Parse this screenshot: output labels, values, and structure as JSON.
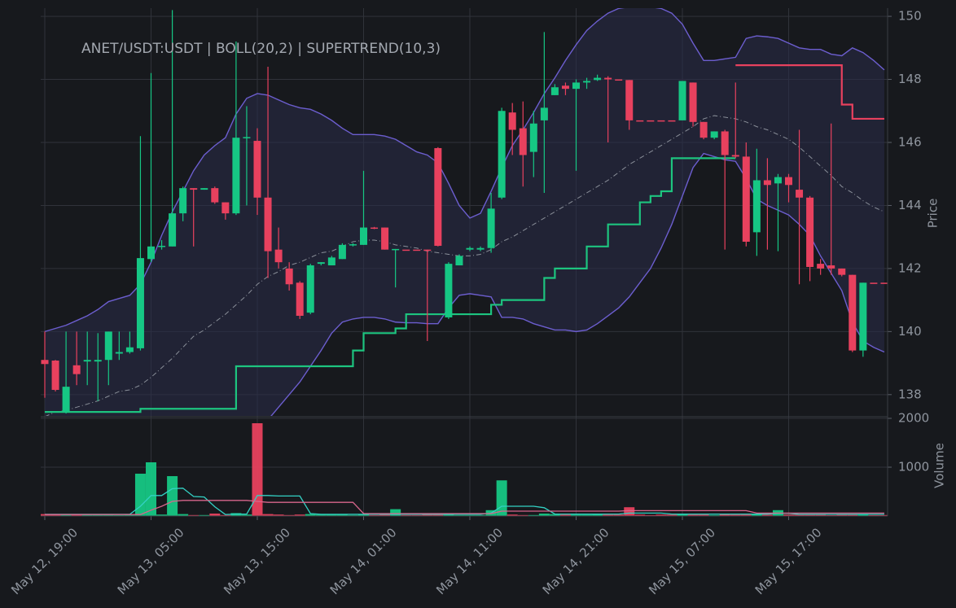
{
  "chart_data": [
    {
      "type": "candlestick",
      "title": "ANET/USDT:USDT | BOLL(20,2) | SUPERTREND(10,3)",
      "ylabel": "Price",
      "ylim": [
        137.35,
        150.26
      ],
      "yticks": [
        138,
        140,
        142,
        144,
        146,
        148,
        150
      ],
      "grid": true,
      "up_color": "#16c784",
      "down_color": "#e8415e",
      "open": [
        139.1,
        139.08,
        137.45,
        138.93,
        139.05,
        139.05,
        139.1,
        139.3,
        139.35,
        139.47,
        142.3,
        142.7,
        142.7,
        143.75,
        144.55,
        144.5,
        144.55,
        144.1,
        143.75,
        146.15,
        146.05,
        144.25,
        142.6,
        142.0,
        141.55,
        140.6,
        142.15,
        142.1,
        142.3,
        142.75,
        142.75,
        143.3,
        143.3,
        142.6,
        142.6,
        142.6,
        142.6,
        145.82,
        140.45,
        142.1,
        142.6,
        142.6,
        142.65,
        144.25,
        146.95,
        146.45,
        145.7,
        146.7,
        147.5,
        147.8,
        147.7,
        147.9,
        147.98,
        148.05,
        148.0,
        147.98,
        146.7,
        146.7,
        146.7,
        146.7,
        146.7,
        147.9,
        146.65,
        146.15,
        146.35,
        145.6,
        145.55,
        143.15,
        144.8,
        144.7,
        144.9,
        144.5,
        144.25,
        142.15,
        142.1,
        142.0,
        141.8,
        139.4,
        141.55,
        141.55
      ],
      "high": [
        140.0,
        139.1,
        140.0,
        140.0,
        140.0,
        139.95,
        140.0,
        140.0,
        140.0,
        146.2,
        148.2,
        142.9,
        150.2,
        144.6,
        144.55,
        144.55,
        144.6,
        144.1,
        149.2,
        147.15,
        146.45,
        148.4,
        143.3,
        142.2,
        141.6,
        142.15,
        142.2,
        142.4,
        142.8,
        142.8,
        145.1,
        143.32,
        143.3,
        142.62,
        142.6,
        142.6,
        142.6,
        145.85,
        142.2,
        142.45,
        142.7,
        142.7,
        144.4,
        147.1,
        147.25,
        147.3,
        147.0,
        149.5,
        147.85,
        147.9,
        148.0,
        148.05,
        148.15,
        148.1,
        148.0,
        147.98,
        146.7,
        146.7,
        146.7,
        146.7,
        147.95,
        147.9,
        146.65,
        146.35,
        146.4,
        147.9,
        146.0,
        145.8,
        145.5,
        145.0,
        145.0,
        146.4,
        144.3,
        142.3,
        146.6,
        142.0,
        141.8,
        141.55,
        141.55,
        141.55
      ],
      "low": [
        137.9,
        138.1,
        137.4,
        138.3,
        138.3,
        137.8,
        138.3,
        139.1,
        139.3,
        139.4,
        142.2,
        142.6,
        142.7,
        143.5,
        142.7,
        144.5,
        144.05,
        143.55,
        143.7,
        144.0,
        143.7,
        141.7,
        142.0,
        141.3,
        140.4,
        140.55,
        142.1,
        142.1,
        142.3,
        142.7,
        142.75,
        143.25,
        142.6,
        141.4,
        142.6,
        142.6,
        139.7,
        142.7,
        140.4,
        142.1,
        142.55,
        142.55,
        142.5,
        144.2,
        145.6,
        144.6,
        144.9,
        144.4,
        147.5,
        147.5,
        145.1,
        147.7,
        147.95,
        146.0,
        148.0,
        146.4,
        146.7,
        146.7,
        146.7,
        146.7,
        146.7,
        146.5,
        146.1,
        146.1,
        142.6,
        145.5,
        142.7,
        142.4,
        142.6,
        142.55,
        144.1,
        141.5,
        141.6,
        141.8,
        141.8,
        141.75,
        139.35,
        139.2,
        141.55,
        141.55
      ],
      "close": [
        138.97,
        138.15,
        138.25,
        138.65,
        139.1,
        139.1,
        140.0,
        139.35,
        139.5,
        142.33,
        142.7,
        142.72,
        143.75,
        144.55,
        144.5,
        144.55,
        144.1,
        143.75,
        146.15,
        146.17,
        144.25,
        142.55,
        142.2,
        141.5,
        140.5,
        142.1,
        142.2,
        142.35,
        142.75,
        142.77,
        143.3,
        143.28,
        142.6,
        142.62,
        142.6,
        142.6,
        142.6,
        142.72,
        142.15,
        142.4,
        142.65,
        142.65,
        143.9,
        147.0,
        146.4,
        145.6,
        146.6,
        147.1,
        147.75,
        147.7,
        147.9,
        147.95,
        148.05,
        148.0,
        148.0,
        146.7,
        146.7,
        146.7,
        146.7,
        146.7,
        147.95,
        146.65,
        146.15,
        146.35,
        145.6,
        145.55,
        142.85,
        144.8,
        144.65,
        144.9,
        144.65,
        144.25,
        142.05,
        142.0,
        142.0,
        141.8,
        139.4,
        141.55,
        141.55,
        141.55
      ],
      "bollinger": {
        "color": "#6c5ecf",
        "mid_color": "#8a8f99",
        "fill": "#2a2c48",
        "upper": [
          140.0,
          140.1,
          140.2,
          140.35,
          140.5,
          140.7,
          140.95,
          141.05,
          141.15,
          141.5,
          142.2,
          143.05,
          143.8,
          144.45,
          145.1,
          145.6,
          145.9,
          146.15,
          146.9,
          147.4,
          147.55,
          147.5,
          147.35,
          147.2,
          147.1,
          147.05,
          146.9,
          146.7,
          146.45,
          146.25,
          146.25,
          146.25,
          146.2,
          146.1,
          145.9,
          145.7,
          145.6,
          145.35,
          144.7,
          144.0,
          143.6,
          143.75,
          144.45,
          145.2,
          145.9,
          146.4,
          146.95,
          147.55,
          148.05,
          148.6,
          149.1,
          149.55,
          149.85,
          150.1,
          150.25,
          150.3,
          150.3,
          150.3,
          150.25,
          150.1,
          149.75,
          149.15,
          148.6,
          148.6,
          148.65,
          148.7,
          149.3,
          149.38,
          149.35,
          149.3,
          149.15,
          149.0,
          148.95,
          148.95,
          148.8,
          148.75,
          149.0,
          148.85,
          148.6,
          148.3
        ],
        "middle": [
          137.3,
          137.45,
          137.5,
          137.6,
          137.7,
          137.8,
          137.95,
          138.1,
          138.15,
          138.3,
          138.55,
          138.85,
          139.15,
          139.5,
          139.85,
          140.05,
          140.3,
          140.55,
          140.85,
          141.15,
          141.5,
          141.75,
          141.9,
          142.1,
          142.2,
          142.35,
          142.5,
          142.55,
          142.7,
          142.85,
          142.9,
          142.9,
          142.85,
          142.75,
          142.7,
          142.65,
          142.55,
          142.5,
          142.45,
          142.4,
          142.4,
          142.45,
          142.6,
          142.85,
          143.0,
          143.2,
          143.4,
          143.6,
          143.8,
          144.0,
          144.2,
          144.4,
          144.6,
          144.8,
          145.05,
          145.3,
          145.5,
          145.7,
          145.9,
          146.1,
          146.3,
          146.5,
          146.75,
          146.85,
          146.8,
          146.75,
          146.65,
          146.5,
          146.4,
          146.25,
          146.1,
          145.85,
          145.55,
          145.25,
          144.95,
          144.6,
          144.4,
          144.15,
          143.95,
          143.8
        ],
        "lower": [
          134.6,
          134.8,
          134.8,
          134.85,
          134.9,
          134.9,
          134.95,
          135.15,
          135.15,
          135.1,
          134.9,
          134.65,
          134.5,
          134.55,
          134.6,
          134.5,
          134.7,
          134.95,
          135.5,
          136.0,
          136.6,
          137.2,
          137.6,
          138.0,
          138.4,
          138.9,
          139.4,
          139.95,
          140.3,
          140.4,
          140.45,
          140.45,
          140.4,
          140.3,
          140.28,
          140.28,
          140.25,
          140.25,
          140.75,
          141.15,
          141.2,
          141.15,
          141.1,
          140.45,
          140.45,
          140.4,
          140.25,
          140.15,
          140.05,
          140.05,
          140.0,
          140.05,
          140.25,
          140.5,
          140.75,
          141.1,
          141.55,
          142.0,
          142.65,
          143.4,
          144.3,
          145.2,
          145.65,
          145.55,
          145.45,
          145.4,
          144.85,
          144.2,
          144.0,
          143.85,
          143.7,
          143.4,
          143.05,
          142.4,
          141.85,
          141.3,
          140.3,
          139.7,
          139.5,
          139.35
        ]
      },
      "supertrend": [
        {
          "color": "#1dc47f",
          "values": [
            137.45,
            137.45,
            137.45,
            137.45,
            137.45,
            137.45,
            137.45,
            137.45,
            137.45,
            137.55,
            137.55,
            137.55,
            137.55,
            137.55,
            137.55,
            137.55,
            137.55,
            137.55,
            138.9,
            138.9,
            138.9,
            138.9,
            138.9,
            138.9,
            138.9,
            138.9,
            138.9,
            138.9,
            138.9,
            139.4,
            139.95,
            139.95,
            139.95,
            140.1,
            140.55,
            140.55,
            140.55,
            140.55,
            140.55,
            140.55,
            140.55,
            140.55,
            140.85,
            141.0,
            141.0,
            141.0,
            141.0,
            141.7,
            142.0,
            142.0,
            142.0,
            142.7,
            142.7,
            143.4,
            143.4,
            143.4,
            144.1,
            144.3,
            144.45,
            145.5,
            145.5,
            145.5,
            145.5,
            145.5,
            145.5,
            145.5,
            null,
            null,
            null,
            null,
            null,
            null,
            null,
            null,
            null,
            null,
            null,
            null,
            null,
            null
          ]
        },
        {
          "color": "#e8415e",
          "values": [
            null,
            null,
            null,
            null,
            null,
            null,
            null,
            null,
            null,
            null,
            null,
            null,
            null,
            null,
            null,
            null,
            null,
            null,
            null,
            null,
            null,
            null,
            null,
            null,
            null,
            null,
            null,
            null,
            null,
            null,
            null,
            null,
            null,
            null,
            null,
            null,
            null,
            null,
            null,
            null,
            null,
            null,
            null,
            null,
            null,
            null,
            null,
            null,
            null,
            null,
            null,
            null,
            null,
            null,
            null,
            null,
            null,
            null,
            null,
            null,
            null,
            null,
            null,
            null,
            null,
            148.45,
            148.45,
            148.45,
            148.45,
            148.45,
            148.45,
            148.45,
            148.45,
            148.45,
            148.45,
            147.2,
            146.75,
            146.75,
            146.75,
            146.75
          ]
        }
      ]
    },
    {
      "type": "bar",
      "ylabel": "Volume",
      "ylim": [
        0,
        2000
      ],
      "yticks": [
        1000,
        2000
      ],
      "grid": true,
      "categories": [
        "May 12, 19:00",
        null,
        null,
        null,
        null,
        null,
        null,
        null,
        null,
        null,
        "May 13, 05:00",
        null,
        null,
        null,
        null,
        null,
        null,
        null,
        null,
        null,
        "May 13, 15:00",
        null,
        null,
        null,
        null,
        null,
        null,
        null,
        null,
        null,
        "May 14, 01:00",
        null,
        null,
        null,
        null,
        null,
        null,
        null,
        null,
        null,
        "May 14, 11:00",
        null,
        null,
        null,
        null,
        null,
        null,
        null,
        null,
        null,
        "May 14, 21:00",
        null,
        null,
        null,
        null,
        null,
        null,
        null,
        null,
        null,
        "May 15, 07:00",
        null,
        null,
        null,
        null,
        null,
        null,
        null,
        null,
        null,
        "May 15, 17:00",
        null,
        null,
        null,
        null,
        null,
        null,
        null,
        null,
        null
      ],
      "values": [
        40,
        30,
        30,
        40,
        30,
        25,
        30,
        20,
        30,
        867,
        1100,
        30,
        817,
        40,
        20,
        20,
        50,
        20,
        60,
        30,
        1900,
        40,
        30,
        20,
        30,
        40,
        30,
        30,
        30,
        20,
        30,
        20,
        30,
        140,
        20,
        20,
        30,
        30,
        30,
        20,
        20,
        20,
        120,
        730,
        30,
        20,
        20,
        50,
        40,
        30,
        30,
        30,
        40,
        30,
        30,
        180,
        30,
        20,
        30,
        30,
        40,
        30,
        30,
        20,
        40,
        30,
        30,
        40,
        30,
        120,
        30,
        30,
        30,
        30,
        20,
        30,
        40,
        30,
        20,
        20
      ],
      "ma": [
        {
          "color": "#33d1c4",
          "values": [
            35,
            35,
            35,
            35,
            35,
            35,
            35,
            35,
            35,
            200,
            420,
            420,
            560,
            570,
            400,
            390,
            190,
            30,
            40,
            40,
            420,
            420,
            410,
            410,
            410,
            50,
            35,
            35,
            35,
            35,
            35,
            35,
            35,
            35,
            35,
            35,
            35,
            35,
            35,
            35,
            35,
            35,
            60,
            200,
            200,
            200,
            200,
            170,
            40,
            40,
            40,
            40,
            40,
            40,
            40,
            60,
            60,
            60,
            60,
            40,
            40,
            40,
            40,
            40,
            40,
            40,
            40,
            40,
            40,
            55,
            55,
            35,
            35,
            35,
            35,
            35,
            35,
            35,
            35,
            35
          ]
        },
        {
          "color": "#d7668c",
          "values": [
            30,
            30,
            30,
            30,
            30,
            30,
            30,
            30,
            30,
            30,
            120,
            200,
            300,
            320,
            320,
            320,
            320,
            320,
            320,
            320,
            300,
            280,
            280,
            280,
            280,
            280,
            280,
            280,
            280,
            280,
            50,
            50,
            50,
            50,
            50,
            50,
            50,
            50,
            50,
            50,
            50,
            50,
            50,
            100,
            100,
            100,
            100,
            100,
            100,
            100,
            100,
            100,
            100,
            100,
            100,
            110,
            110,
            110,
            110,
            110,
            110,
            110,
            110,
            110,
            110,
            110,
            110,
            60,
            60,
            60,
            60,
            60,
            60,
            60,
            60,
            60,
            60,
            60,
            60,
            60
          ]
        }
      ]
    }
  ]
}
